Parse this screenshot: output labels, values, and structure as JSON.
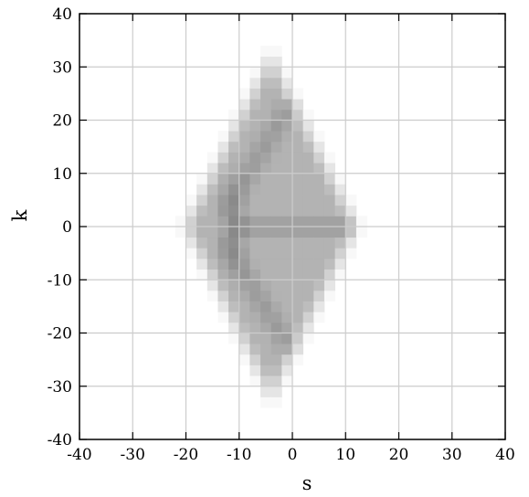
{
  "chart_data": {
    "type": "heatmap",
    "title": "",
    "xlabel": "s",
    "ylabel": "k",
    "xlim": [
      -40,
      40
    ],
    "ylim": [
      -40,
      40
    ],
    "xticks": [
      -40,
      -30,
      -20,
      -10,
      0,
      10,
      20,
      30,
      40
    ],
    "yticks": [
      -40,
      -30,
      -20,
      -10,
      0,
      10,
      20,
      30,
      40
    ],
    "xtick_labels": [
      "-40",
      "-30",
      "-20",
      "-10",
      "0",
      "10",
      "20",
      "30",
      "40"
    ],
    "ytick_labels": [
      "-40",
      "-30",
      "-20",
      "-10",
      "0",
      "10",
      "20",
      "30",
      "40"
    ],
    "grid": true,
    "colormap": "grayscale (white = 0, dark = high)",
    "cell_size": 2,
    "intensity_model": {
      "description": "Diamond-shaped density |s+4|/17 + |k|/34 <= 1, brighter rim, darker X-shaped ridge lines and a dark band near s=-10",
      "center": [
        -4,
        0
      ],
      "half_width_s": 17,
      "half_height_k": 34,
      "ridges": [
        {
          "from": [
            -12,
            4
          ],
          "to": [
            -1,
            22
          ]
        },
        {
          "from": [
            -12,
            -4
          ],
          "to": [
            -1,
            -22
          ]
        },
        {
          "from": [
            -10,
            0
          ],
          "to": [
            10,
            0
          ]
        }
      ]
    }
  }
}
